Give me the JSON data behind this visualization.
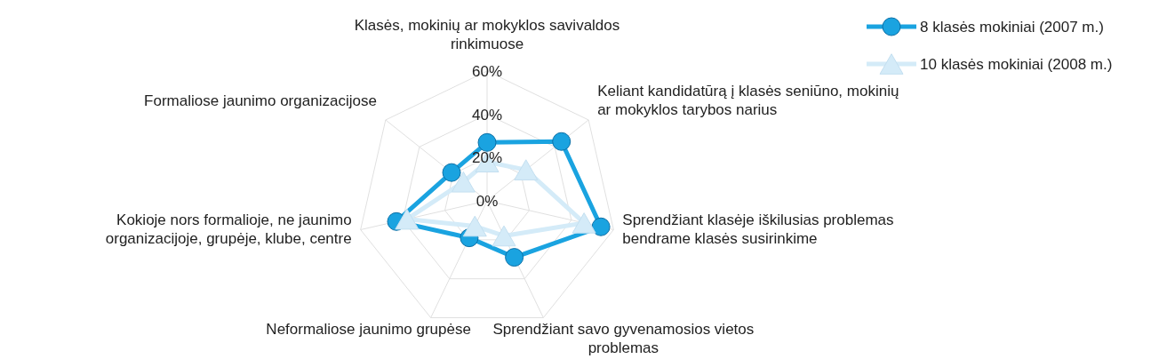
{
  "chart_data": {
    "type": "radar",
    "categories": [
      "Klasės, mokinių ar mokyklos savivaldos rinkimuose",
      "Keliant kandidatūrą į klasės seniūno, mokinių ar mokyklos tarybos narius",
      "Sprendžiant klasėje iškilusias problemas bendrame klasės susirinkime",
      "Sprendžiant savo gyvenamosios vietos problemas",
      "Neformaliose jaunimo grupėse",
      "Kokioje nors formalioje, ne jaunimo organizacijoje, grupėje, klube, centre",
      "Formaliose jaunimo organizacijose"
    ],
    "series": [
      {
        "name": "8 klasės mokiniai (2007 m.)",
        "color": "#1aa3e0",
        "marker": "circle",
        "values": [
          27,
          44,
          54,
          29,
          19,
          43,
          21
        ]
      },
      {
        "name": "10 klasės mokiniai (2008 m.)",
        "color": "#d4ebf8",
        "marker": "triangle",
        "values": [
          18,
          23,
          46,
          18,
          13,
          38,
          14
        ]
      }
    ],
    "ylim": [
      0,
      60
    ],
    "yticks": [
      {
        "value": 0,
        "label": "0%"
      },
      {
        "value": 20,
        "label": "20%"
      },
      {
        "value": 40,
        "label": "40%"
      },
      {
        "value": 60,
        "label": "60%"
      }
    ],
    "grid": true,
    "legend": "top right"
  }
}
